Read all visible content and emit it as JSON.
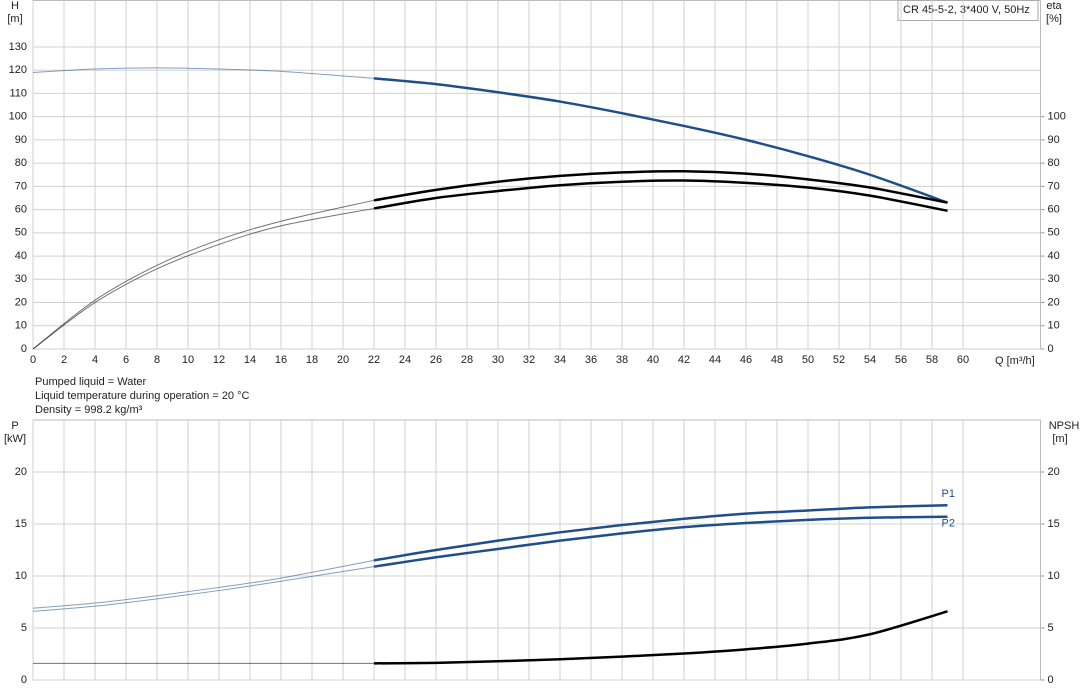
{
  "notes": [
    "Pumped liquid = Water",
    "Liquid temperature during operation = 20 °C",
    "Density = 998.2 kg/m³"
  ],
  "chart_data": [
    {
      "type": "line",
      "title": "CR 45-5-2, 3*400 V, 50Hz",
      "x_label": "Q [m³/h]",
      "y_label": "H",
      "y_unit": "[m]",
      "y2_label": "eta",
      "y2_unit": "[%]",
      "x": [
        0,
        4,
        8,
        12,
        16,
        22,
        26,
        30,
        34,
        38,
        42,
        46,
        50,
        54,
        59
      ],
      "operating_from": 22,
      "series": [
        {
          "color": "#1f4e8c",
          "values": [
            119,
            120.5,
            121,
            120.5,
            119.5,
            116.5,
            114,
            110.5,
            106.5,
            101.5,
            96,
            90,
            83,
            75,
            63
          ]
        },
        {
          "color": "#000000",
          "axis": "y2",
          "values": [
            0,
            21,
            36,
            47,
            55,
            64,
            68.5,
            72,
            74.5,
            76,
            76.5,
            75.5,
            73,
            69.5,
            63
          ]
        },
        {
          "color": "#000000",
          "axis": "y2",
          "values": [
            0,
            20,
            34.5,
            45,
            53,
            60.5,
            65,
            68,
            70.5,
            72,
            72.5,
            71.5,
            69.5,
            66,
            59.5
          ]
        }
      ],
      "xlim": [
        0,
        65
      ],
      "xticks": [
        0,
        2,
        4,
        6,
        8,
        10,
        12,
        14,
        16,
        18,
        20,
        22,
        24,
        26,
        28,
        30,
        32,
        34,
        36,
        38,
        40,
        42,
        44,
        46,
        48,
        50,
        52,
        54,
        56,
        58,
        60
      ],
      "ylim": [
        0,
        150
      ],
      "yticks": [
        0,
        10,
        20,
        30,
        40,
        50,
        60,
        70,
        80,
        90,
        100,
        110,
        120,
        130
      ],
      "y2lim": [
        0,
        150
      ],
      "y2ticks": [
        0,
        10,
        20,
        30,
        40,
        50,
        60,
        70,
        80,
        90,
        100
      ],
      "show_xtick_labels": true,
      "grid": true
    },
    {
      "type": "line",
      "y_label": "P",
      "y_unit": "[kW]",
      "y2_label": "NPSH",
      "y2_unit": "[m]",
      "x": [
        0,
        4,
        8,
        12,
        16,
        22,
        26,
        30,
        34,
        38,
        42,
        46,
        50,
        54,
        59
      ],
      "operating_from": 22,
      "series": [
        {
          "name": "P1",
          "color": "#1f4e8c",
          "values": [
            6.9,
            7.4,
            8.1,
            8.9,
            9.8,
            11.5,
            12.5,
            13.4,
            14.2,
            14.9,
            15.5,
            16,
            16.3,
            16.6,
            16.8
          ]
        },
        {
          "name": "P2",
          "color": "#1f4e8c",
          "values": [
            6.6,
            7.1,
            7.8,
            8.6,
            9.5,
            10.9,
            11.8,
            12.6,
            13.4,
            14.1,
            14.7,
            15.1,
            15.4,
            15.6,
            15.7
          ]
        },
        {
          "color": "#000000",
          "axis": "y2",
          "values": [
            1.6,
            1.6,
            1.6,
            1.6,
            1.6,
            1.6,
            1.65,
            1.8,
            2.0,
            2.25,
            2.55,
            2.95,
            3.5,
            4.4,
            6.6
          ]
        }
      ],
      "xlim": [
        0,
        65
      ],
      "xticks": [
        0,
        2,
        4,
        6,
        8,
        10,
        12,
        14,
        16,
        18,
        20,
        22,
        24,
        26,
        28,
        30,
        32,
        34,
        36,
        38,
        40,
        42,
        44,
        46,
        48,
        50,
        52,
        54,
        56,
        58,
        60
      ],
      "ylim": [
        0,
        25
      ],
      "yticks": [
        0,
        5,
        10,
        15,
        20
      ],
      "y2lim": [
        0,
        25
      ],
      "y2ticks": [
        0,
        5,
        10,
        15,
        20
      ],
      "show_xtick_labels": false,
      "grid": true
    }
  ]
}
